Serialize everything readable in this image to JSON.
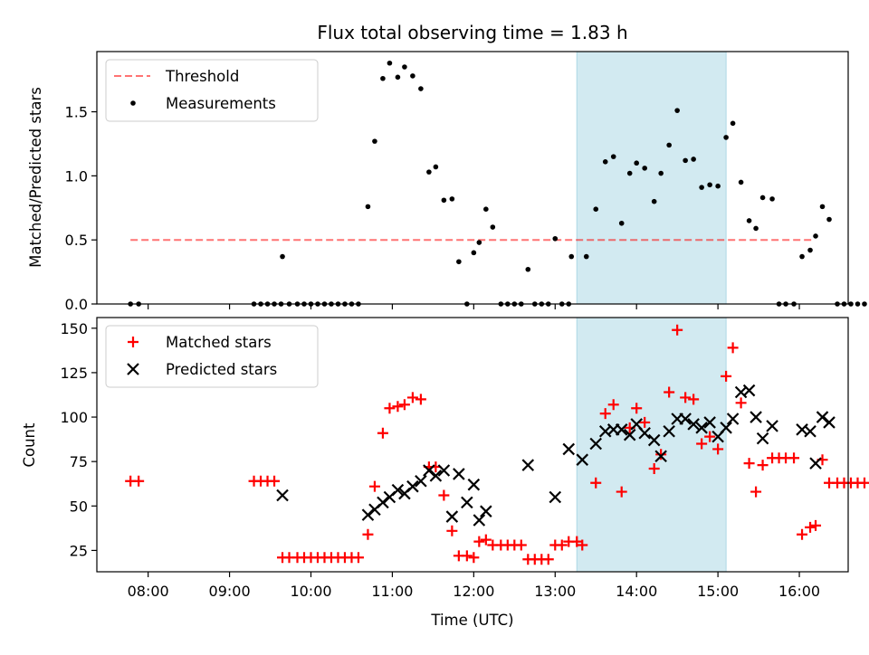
{
  "chart_data": [
    {
      "type": "scatter",
      "title": "Flux total observing time = 1.83 h",
      "xlabel": "",
      "ylabel": "Matched/Predicted stars",
      "xlim_hours": [
        7.37,
        16.6
      ],
      "ylim": [
        0,
        1.97
      ],
      "yticks": [
        0.0,
        0.5,
        1.0,
        1.5
      ],
      "ytick_labels": [
        "0.0",
        "0.5",
        "1.0",
        "1.5"
      ],
      "grid": false,
      "legend_position": "top-left",
      "shaded_interval": {
        "start": "13:16",
        "end": "15:06",
        "color": "#add8e6"
      },
      "threshold": {
        "name": "Threshold",
        "value": 0.5,
        "x_start": "07:47",
        "x_end": "16:11",
        "color": "#ff0000"
      },
      "series": [
        {
          "name": "Measurements",
          "color": "#000000",
          "points": [
            [
              "07:47",
              0
            ],
            [
              "07:53",
              0
            ],
            [
              "09:18",
              0
            ],
            [
              "09:23",
              0
            ],
            [
              "09:28",
              0
            ],
            [
              "09:33",
              0
            ],
            [
              "09:38",
              0
            ],
            [
              "09:39",
              0.37
            ],
            [
              "09:44",
              0
            ],
            [
              "09:50",
              0
            ],
            [
              "09:55",
              0
            ],
            [
              "10:00",
              0
            ],
            [
              "10:05",
              0
            ],
            [
              "10:10",
              0
            ],
            [
              "10:15",
              0
            ],
            [
              "10:20",
              0
            ],
            [
              "10:25",
              0
            ],
            [
              "10:30",
              0
            ],
            [
              "10:35",
              0
            ],
            [
              "10:42",
              0.76
            ],
            [
              "10:47",
              1.27
            ],
            [
              "10:53",
              1.76
            ],
            [
              "10:58",
              1.88
            ],
            [
              "11:04",
              1.77
            ],
            [
              "11:09",
              1.85
            ],
            [
              "11:15",
              1.78
            ],
            [
              "11:21",
              1.68
            ],
            [
              "11:27",
              1.03
            ],
            [
              "11:32",
              1.07
            ],
            [
              "11:38",
              0.81
            ],
            [
              "11:44",
              0.82
            ],
            [
              "11:49",
              0.33
            ],
            [
              "11:55",
              0
            ],
            [
              "12:00",
              0.4
            ],
            [
              "12:04",
              0.48
            ],
            [
              "12:09",
              0.74
            ],
            [
              "12:14",
              0.6
            ],
            [
              "12:20",
              0
            ],
            [
              "12:25",
              0
            ],
            [
              "12:30",
              0
            ],
            [
              "12:35",
              0
            ],
            [
              "12:40",
              0.27
            ],
            [
              "12:45",
              0
            ],
            [
              "12:50",
              0
            ],
            [
              "12:55",
              0
            ],
            [
              "13:00",
              0.51
            ],
            [
              "13:05",
              0
            ],
            [
              "13:10",
              0
            ],
            [
              "13:12",
              0.37
            ],
            [
              "13:23",
              0.37
            ],
            [
              "13:30",
              0.74
            ],
            [
              "13:37",
              1.11
            ],
            [
              "13:43",
              1.15
            ],
            [
              "13:49",
              0.63
            ],
            [
              "13:55",
              1.02
            ],
            [
              "14:00",
              1.1
            ],
            [
              "14:06",
              1.06
            ],
            [
              "14:13",
              0.8
            ],
            [
              "14:18",
              1.02
            ],
            [
              "14:24",
              1.24
            ],
            [
              "14:30",
              1.51
            ],
            [
              "14:36",
              1.12
            ],
            [
              "14:42",
              1.13
            ],
            [
              "14:48",
              0.91
            ],
            [
              "14:54",
              0.93
            ],
            [
              "15:00",
              0.92
            ],
            [
              "15:06",
              1.3
            ],
            [
              "15:11",
              1.41
            ],
            [
              "15:17",
              0.95
            ],
            [
              "15:23",
              0.65
            ],
            [
              "15:28",
              0.59
            ],
            [
              "15:33",
              0.83
            ],
            [
              "15:40",
              0.82
            ],
            [
              "15:45",
              0
            ],
            [
              "15:50",
              0
            ],
            [
              "15:56",
              0
            ],
            [
              "16:02",
              0.37
            ],
            [
              "16:08",
              0.42
            ],
            [
              "16:12",
              0.53
            ],
            [
              "16:17",
              0.76
            ],
            [
              "16:22",
              0.66
            ],
            [
              "16:28",
              0
            ],
            [
              "16:33",
              0
            ],
            [
              "16:38",
              0
            ],
            [
              "16:43",
              0
            ],
            [
              "16:48",
              0
            ]
          ]
        }
      ]
    },
    {
      "type": "scatter",
      "title": "",
      "xlabel": "Time (UTC)",
      "ylabel": "Count",
      "xlim_hours": [
        7.37,
        16.6
      ],
      "ylim": [
        13,
        156
      ],
      "yticks": [
        25,
        50,
        75,
        100,
        125,
        150
      ],
      "ytick_labels": [
        "25",
        "50",
        "75",
        "100",
        "125",
        "150"
      ],
      "xticks": [
        "08:00",
        "09:00",
        "10:00",
        "11:00",
        "12:00",
        "13:00",
        "14:00",
        "15:00",
        "16:00"
      ],
      "grid": false,
      "legend_position": "top-left",
      "shaded_interval": {
        "start": "13:16",
        "end": "15:06",
        "color": "#add8e6"
      },
      "series": [
        {
          "name": "Matched stars",
          "marker": "+",
          "color": "#ff0000",
          "points": [
            [
              "07:47",
              64
            ],
            [
              "07:53",
              64
            ],
            [
              "09:18",
              64
            ],
            [
              "09:23",
              64
            ],
            [
              "09:28",
              64
            ],
            [
              "09:33",
              64
            ],
            [
              "09:39",
              21
            ],
            [
              "09:44",
              21
            ],
            [
              "09:50",
              21
            ],
            [
              "09:55",
              21
            ],
            [
              "10:00",
              21
            ],
            [
              "10:05",
              21
            ],
            [
              "10:10",
              21
            ],
            [
              "10:15",
              21
            ],
            [
              "10:20",
              21
            ],
            [
              "10:25",
              21
            ],
            [
              "10:30",
              21
            ],
            [
              "10:35",
              21
            ],
            [
              "10:42",
              34
            ],
            [
              "10:47",
              61
            ],
            [
              "10:53",
              91
            ],
            [
              "10:58",
              105
            ],
            [
              "11:04",
              106
            ],
            [
              "11:09",
              107
            ],
            [
              "11:15",
              111
            ],
            [
              "11:21",
              110
            ],
            [
              "11:27",
              72
            ],
            [
              "11:32",
              72
            ],
            [
              "11:38",
              56
            ],
            [
              "11:44",
              36
            ],
            [
              "11:49",
              22
            ],
            [
              "11:55",
              22
            ],
            [
              "12:00",
              21
            ],
            [
              "12:04",
              30
            ],
            [
              "12:09",
              31
            ],
            [
              "12:14",
              28
            ],
            [
              "12:20",
              28
            ],
            [
              "12:25",
              28
            ],
            [
              "12:30",
              28
            ],
            [
              "12:35",
              28
            ],
            [
              "12:40",
              20
            ],
            [
              "12:45",
              20
            ],
            [
              "12:50",
              20
            ],
            [
              "12:55",
              20
            ],
            [
              "13:00",
              28
            ],
            [
              "13:05",
              28
            ],
            [
              "13:10",
              30
            ],
            [
              "13:16",
              30
            ],
            [
              "13:20",
              28
            ],
            [
              "13:30",
              63
            ],
            [
              "13:37",
              102
            ],
            [
              "13:43",
              107
            ],
            [
              "13:49",
              58
            ],
            [
              "13:55",
              94
            ],
            [
              "14:00",
              105
            ],
            [
              "14:06",
              97
            ],
            [
              "14:13",
              71
            ],
            [
              "14:18",
              79
            ],
            [
              "14:24",
              114
            ],
            [
              "14:30",
              149
            ],
            [
              "14:36",
              111
            ],
            [
              "14:42",
              110
            ],
            [
              "14:48",
              85
            ],
            [
              "14:54",
              89
            ],
            [
              "15:00",
              82
            ],
            [
              "15:06",
              123
            ],
            [
              "15:11",
              139
            ],
            [
              "15:17",
              108
            ],
            [
              "15:23",
              74
            ],
            [
              "15:28",
              58
            ],
            [
              "15:33",
              73
            ],
            [
              "15:40",
              77
            ],
            [
              "15:45",
              77
            ],
            [
              "15:50",
              77
            ],
            [
              "15:56",
              77
            ],
            [
              "16:02",
              34
            ],
            [
              "16:08",
              38
            ],
            [
              "16:12",
              39
            ],
            [
              "16:17",
              76
            ],
            [
              "16:22",
              63
            ],
            [
              "16:28",
              63
            ],
            [
              "16:33",
              63
            ],
            [
              "16:38",
              63
            ],
            [
              "16:43",
              63
            ],
            [
              "16:48",
              63
            ]
          ]
        },
        {
          "name": "Predicted stars",
          "marker": "x",
          "color": "#000000",
          "points": [
            [
              "09:39",
              56
            ],
            [
              "10:42",
              45
            ],
            [
              "10:47",
              48
            ],
            [
              "10:53",
              52
            ],
            [
              "10:58",
              55
            ],
            [
              "11:04",
              59
            ],
            [
              "11:09",
              57
            ],
            [
              "11:15",
              61
            ],
            [
              "11:21",
              64
            ],
            [
              "11:27",
              70
            ],
            [
              "11:32",
              67
            ],
            [
              "11:38",
              70
            ],
            [
              "11:44",
              44
            ],
            [
              "11:49",
              68
            ],
            [
              "11:55",
              52
            ],
            [
              "12:00",
              62
            ],
            [
              "12:04",
              42
            ],
            [
              "12:09",
              47
            ],
            [
              "12:40",
              73
            ],
            [
              "13:00",
              55
            ],
            [
              "13:10",
              82
            ],
            [
              "13:20",
              76
            ],
            [
              "13:30",
              85
            ],
            [
              "13:37",
              92
            ],
            [
              "13:43",
              93
            ],
            [
              "13:49",
              93
            ],
            [
              "13:55",
              90
            ],
            [
              "14:00",
              96
            ],
            [
              "14:06",
              91
            ],
            [
              "14:13",
              87
            ],
            [
              "14:18",
              78
            ],
            [
              "14:24",
              92
            ],
            [
              "14:30",
              99
            ],
            [
              "14:36",
              99
            ],
            [
              "14:42",
              96
            ],
            [
              "14:48",
              94
            ],
            [
              "14:54",
              97
            ],
            [
              "15:00",
              89
            ],
            [
              "15:06",
              94
            ],
            [
              "15:11",
              99
            ],
            [
              "15:17",
              114
            ],
            [
              "15:23",
              115
            ],
            [
              "15:28",
              100
            ],
            [
              "15:33",
              88
            ],
            [
              "15:40",
              95
            ],
            [
              "16:02",
              93
            ],
            [
              "16:08",
              92
            ],
            [
              "16:12",
              74
            ],
            [
              "16:17",
              100
            ],
            [
              "16:22",
              97
            ]
          ]
        }
      ]
    }
  ]
}
